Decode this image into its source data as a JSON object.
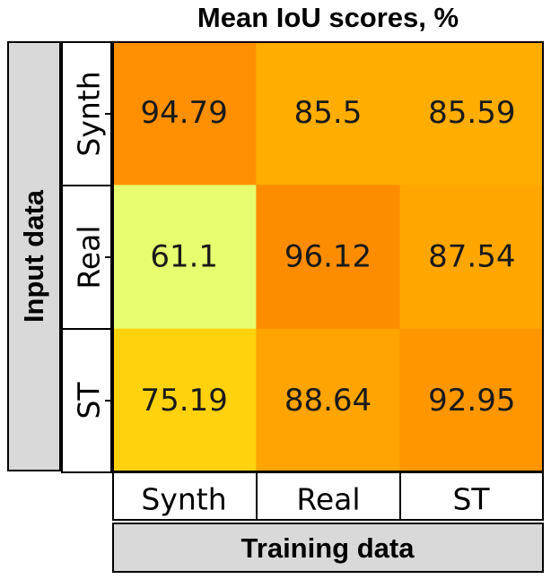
{
  "chart_data": {
    "type": "heatmap",
    "title": "Mean IoU scores, %",
    "xlabel": "Training data",
    "ylabel": "Input data",
    "x_categories": [
      "Synth",
      "Real",
      "ST"
    ],
    "y_categories": [
      "Synth",
      "Real",
      "ST"
    ],
    "values": [
      [
        94.79,
        85.5,
        85.59
      ],
      [
        61.1,
        96.12,
        87.54
      ],
      [
        75.19,
        88.64,
        92.95
      ]
    ],
    "value_labels": [
      [
        "94.79",
        "85.5",
        "85.59"
      ],
      [
        "61.1",
        "96.12",
        "87.54"
      ],
      [
        "75.19",
        "88.64",
        "92.95"
      ]
    ],
    "colormap": "Wistia",
    "color_range": [
      60,
      100
    ],
    "colorscale": [
      "#e4ff7a",
      "#ffe81a",
      "#ffbd00",
      "#ffa000",
      "#fc7f00"
    ]
  }
}
